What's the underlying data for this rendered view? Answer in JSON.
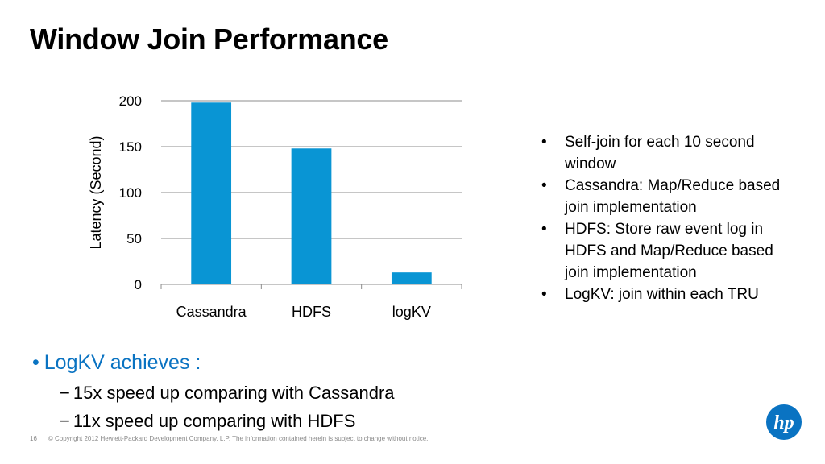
{
  "slide": {
    "title": "Window Join Performance",
    "page_number": "16",
    "copyright": "© Copyright 2012 Hewlett-Packard Development Company, L.P.  The information contained herein is subject to change without notice."
  },
  "chart_data": {
    "type": "bar",
    "categories": [
      "Cassandra",
      "HDFS",
      "logKV"
    ],
    "values": [
      198,
      148,
      13
    ],
    "ylabel": "Latency (Second)",
    "ylim": [
      0,
      200
    ],
    "yticks": [
      0,
      50,
      100,
      150,
      200
    ],
    "grid": true,
    "bar_color": "#0995d4"
  },
  "notes": [
    "Self-join for each 10 second window",
    "Cassandra: Map/Reduce based join implementation",
    "HDFS: Store raw event log in HDFS and Map/Reduce based join implementation",
    "LogKV: join within each TRU"
  ],
  "summary": {
    "headline": "LogKV achieves :",
    "bullet_char": "•",
    "dash_char": "−",
    "points": [
      "15x speed up comparing with Cassandra",
      "11x speed up comparing with HDFS"
    ]
  },
  "logo": {
    "text": "hp",
    "color": "#0a73c2"
  }
}
